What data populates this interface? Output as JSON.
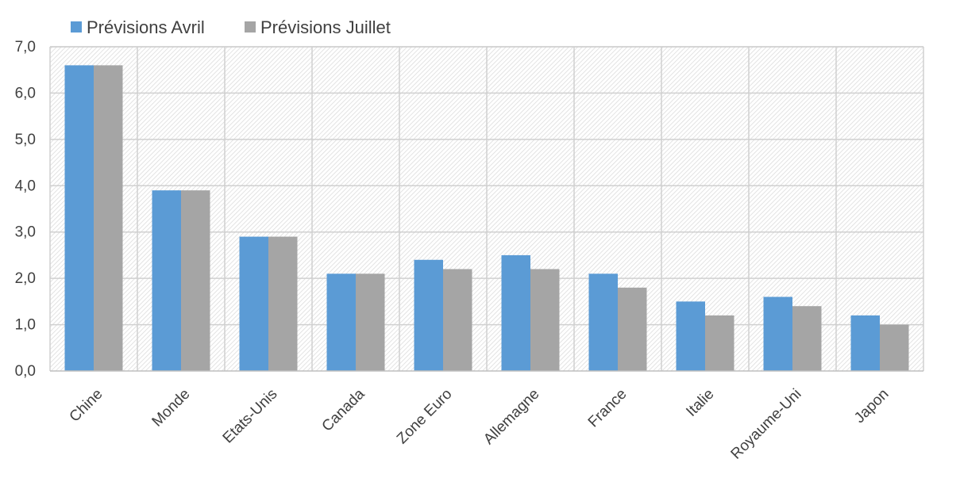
{
  "chart_data": {
    "type": "bar",
    "categories": [
      "Chine",
      "Monde",
      "Etats-Unis",
      "Canada",
      "Zone Euro",
      "Allemagne",
      "France",
      "Italie",
      "Royaume-Uni",
      "Japon"
    ],
    "series": [
      {
        "name": "Prévisions Avril",
        "color": "#5B9BD5",
        "values": [
          6.6,
          3.9,
          2.9,
          2.1,
          2.4,
          2.5,
          2.1,
          1.5,
          1.6,
          1.2
        ]
      },
      {
        "name": "Prévisions Juillet",
        "color": "#A5A5A5",
        "values": [
          6.6,
          3.9,
          2.9,
          2.1,
          2.2,
          2.2,
          1.8,
          1.2,
          1.4,
          1.0
        ]
      }
    ],
    "y_ticks": [
      "0,0",
      "1,0",
      "2,0",
      "3,0",
      "4,0",
      "5,0",
      "6,0",
      "7,0"
    ],
    "ylim": [
      0,
      7
    ],
    "title": "",
    "xlabel": "",
    "ylabel": "",
    "grid": true,
    "legend_position": "top-left"
  }
}
